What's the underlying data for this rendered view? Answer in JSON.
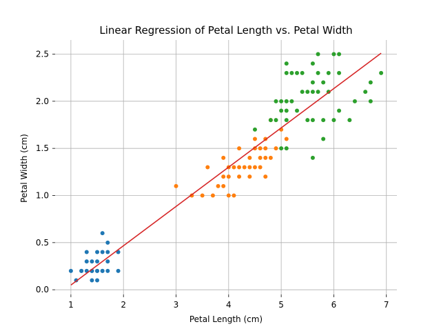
{
  "chart_data": {
    "type": "scatter",
    "title": "Linear Regression of Petal Length vs. Petal Width",
    "xlabel": "Petal Length (cm)",
    "ylabel": "Petal Width (cm)",
    "xlim": [
      0.7,
      7.2
    ],
    "ylim": [
      -0.05,
      2.65
    ],
    "x_ticks": [
      1,
      2,
      3,
      4,
      5,
      6,
      7
    ],
    "y_ticks": [
      0.0,
      0.5,
      1.0,
      1.5,
      2.0,
      2.5
    ],
    "x_tick_labels": [
      "1",
      "2",
      "3",
      "4",
      "5",
      "6",
      "7"
    ],
    "y_tick_labels": [
      "0.0",
      "0.5",
      "1.0",
      "1.5",
      "2.0",
      "2.5"
    ],
    "grid": true,
    "series": [
      {
        "color": "#1f77b4",
        "points": [
          [
            1.0,
            0.2
          ],
          [
            1.1,
            0.1
          ],
          [
            1.2,
            0.2
          ],
          [
            1.2,
            0.2
          ],
          [
            1.3,
            0.2
          ],
          [
            1.3,
            0.3
          ],
          [
            1.3,
            0.4
          ],
          [
            1.4,
            0.1
          ],
          [
            1.4,
            0.2
          ],
          [
            1.4,
            0.3
          ],
          [
            1.5,
            0.1
          ],
          [
            1.5,
            0.2
          ],
          [
            1.5,
            0.3
          ],
          [
            1.5,
            0.4
          ],
          [
            1.6,
            0.2
          ],
          [
            1.6,
            0.4
          ],
          [
            1.6,
            0.6
          ],
          [
            1.7,
            0.2
          ],
          [
            1.7,
            0.3
          ],
          [
            1.7,
            0.4
          ],
          [
            1.7,
            0.5
          ],
          [
            1.9,
            0.2
          ],
          [
            1.9,
            0.4
          ],
          [
            1.4,
            0.2
          ],
          [
            1.5,
            0.2
          ],
          [
            1.6,
            0.2
          ]
        ]
      },
      {
        "color": "#ff7f0e",
        "points": [
          [
            3.0,
            1.1
          ],
          [
            3.3,
            1.0
          ],
          [
            3.5,
            1.0
          ],
          [
            3.6,
            1.3
          ],
          [
            3.7,
            1.0
          ],
          [
            3.8,
            1.1
          ],
          [
            3.9,
            1.1
          ],
          [
            3.9,
            1.2
          ],
          [
            3.9,
            1.4
          ],
          [
            4.0,
            1.0
          ],
          [
            4.0,
            1.2
          ],
          [
            4.0,
            1.3
          ],
          [
            4.1,
            1.0
          ],
          [
            4.1,
            1.3
          ],
          [
            4.2,
            1.2
          ],
          [
            4.2,
            1.3
          ],
          [
            4.2,
            1.5
          ],
          [
            4.3,
            1.3
          ],
          [
            4.4,
            1.2
          ],
          [
            4.4,
            1.3
          ],
          [
            4.4,
            1.4
          ],
          [
            4.5,
            1.3
          ],
          [
            4.5,
            1.5
          ],
          [
            4.5,
            1.6
          ],
          [
            4.6,
            1.3
          ],
          [
            4.6,
            1.4
          ],
          [
            4.6,
            1.5
          ],
          [
            4.7,
            1.2
          ],
          [
            4.7,
            1.4
          ],
          [
            4.7,
            1.5
          ],
          [
            4.7,
            1.6
          ],
          [
            4.8,
            1.4
          ],
          [
            4.8,
            1.8
          ],
          [
            4.9,
            1.5
          ],
          [
            5.0,
            1.7
          ],
          [
            5.1,
            1.6
          ]
        ]
      },
      {
        "color": "#2ca02c",
        "points": [
          [
            4.5,
            1.7
          ],
          [
            4.8,
            1.8
          ],
          [
            4.9,
            1.8
          ],
          [
            4.9,
            2.0
          ],
          [
            5.0,
            1.5
          ],
          [
            5.0,
            1.9
          ],
          [
            5.0,
            2.0
          ],
          [
            5.1,
            1.5
          ],
          [
            5.1,
            1.8
          ],
          [
            5.1,
            1.9
          ],
          [
            5.1,
            2.0
          ],
          [
            5.1,
            2.3
          ],
          [
            5.1,
            2.4
          ],
          [
            5.2,
            2.0
          ],
          [
            5.2,
            2.3
          ],
          [
            5.3,
            1.9
          ],
          [
            5.3,
            2.3
          ],
          [
            5.4,
            2.1
          ],
          [
            5.4,
            2.3
          ],
          [
            5.5,
            1.8
          ],
          [
            5.5,
            2.1
          ],
          [
            5.6,
            1.4
          ],
          [
            5.6,
            1.8
          ],
          [
            5.6,
            2.1
          ],
          [
            5.6,
            2.2
          ],
          [
            5.6,
            2.4
          ],
          [
            5.7,
            2.1
          ],
          [
            5.7,
            2.3
          ],
          [
            5.7,
            2.5
          ],
          [
            5.8,
            1.6
          ],
          [
            5.8,
            1.8
          ],
          [
            5.8,
            2.2
          ],
          [
            5.9,
            2.1
          ],
          [
            5.9,
            2.3
          ],
          [
            6.0,
            1.8
          ],
          [
            6.0,
            2.5
          ],
          [
            6.1,
            1.9
          ],
          [
            6.1,
            2.3
          ],
          [
            6.1,
            2.5
          ],
          [
            6.3,
            1.8
          ],
          [
            6.4,
            2.0
          ],
          [
            6.6,
            2.1
          ],
          [
            6.7,
            2.0
          ],
          [
            6.7,
            2.2
          ],
          [
            6.9,
            2.3
          ]
        ]
      }
    ],
    "regression_line": {
      "color": "#d62728",
      "x": [
        1.0,
        6.9
      ],
      "y": [
        0.05,
        2.51
      ]
    }
  }
}
